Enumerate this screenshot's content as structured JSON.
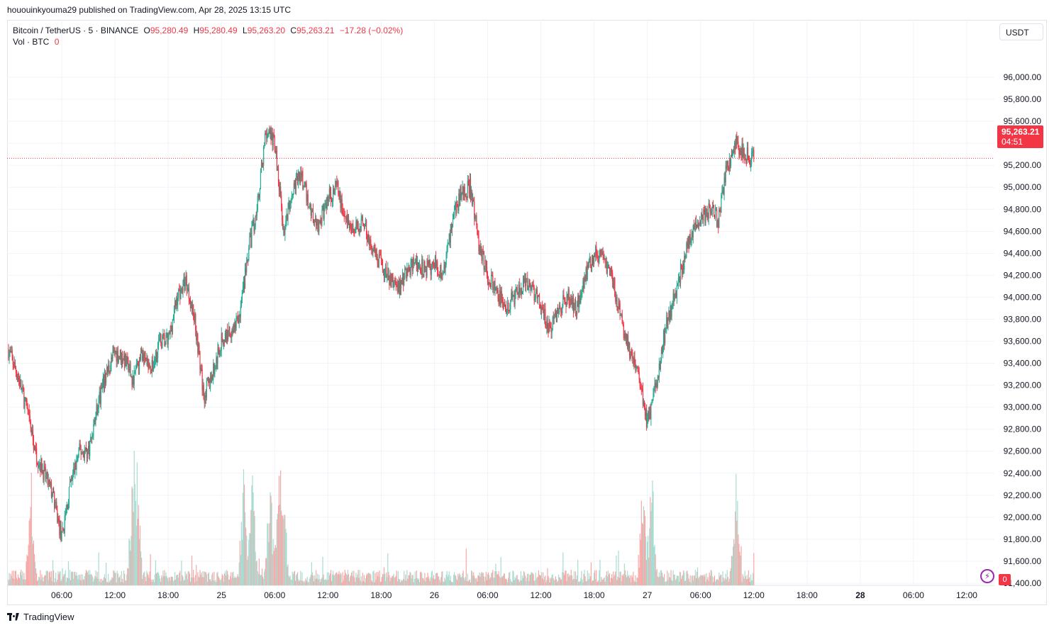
{
  "header": {
    "published_line": "hououinkyouma29 published on TradingView.com, Apr 28, 2025 13:15 UTC"
  },
  "legend": {
    "symbol": "Bitcoin / TetherUS · 5 · BINANCE",
    "open_label": "O",
    "open": "95,280.49",
    "high_label": "H",
    "high": "95,280.49",
    "low_label": "L",
    "low": "95,263.20",
    "close_label": "C",
    "close": "95,263.21",
    "change": "−17.28 (−0.02%)",
    "vol_label": "Vol · BTC",
    "vol_value": "0"
  },
  "currency_button": "USDT",
  "last_price": {
    "price": "95,263.21",
    "countdown": "04:51",
    "value": 95263.21
  },
  "volume_tag": "0",
  "brand": "TradingView",
  "colors": {
    "up": "#22ab94",
    "down": "#f23645",
    "vol_up": "#a8dcd2",
    "vol_down": "#f7a9a7",
    "grid": "#f0f3fa",
    "price_line": "#f23645"
  },
  "icons": {
    "flash": "lightning-icon",
    "brand": "tradingview-logo-icon"
  },
  "chart_data": {
    "type": "candlestick",
    "interval": "5",
    "y_axis": {
      "side": "right",
      "ylim": [
        91300,
        96100
      ],
      "ticks": [
        91400,
        91600,
        91800,
        92000,
        92200,
        92400,
        92600,
        92800,
        93000,
        93200,
        93400,
        93600,
        93800,
        94000,
        94200,
        94400,
        94600,
        94800,
        95000,
        95200,
        95400,
        95600,
        95800,
        96000
      ],
      "tick_labels": [
        "91,400.00",
        "91,600.00",
        "91,800.00",
        "92,000.00",
        "92,200.00",
        "92,400.00",
        "92,600.00",
        "92,800.00",
        "93,000.00",
        "93,200.00",
        "93,400.00",
        "93,600.00",
        "93,800.00",
        "94,000.00",
        "94,200.00",
        "94,400.00",
        "94,600.00",
        "94,800.00",
        "95,000.00",
        "95,200.00",
        "95,400.00",
        "95,600.00",
        "95,800.00",
        "96,000.00"
      ]
    },
    "x_axis": {
      "range_hours": [
        0,
        88
      ],
      "ticks": [
        {
          "t": 6,
          "label": "06:00",
          "bold": false
        },
        {
          "t": 12,
          "label": "12:00",
          "bold": false
        },
        {
          "t": 18,
          "label": "18:00",
          "bold": false
        },
        {
          "t": 24,
          "label": "25",
          "bold": false
        },
        {
          "t": 30,
          "label": "06:00",
          "bold": false
        },
        {
          "t": 36,
          "label": "12:00",
          "bold": false
        },
        {
          "t": 42,
          "label": "18:00",
          "bold": false
        },
        {
          "t": 48,
          "label": "26",
          "bold": false
        },
        {
          "t": 54,
          "label": "06:00",
          "bold": false
        },
        {
          "t": 60,
          "label": "12:00",
          "bold": false
        },
        {
          "t": 66,
          "label": "18:00",
          "bold": false
        },
        {
          "t": 72,
          "label": "27",
          "bold": false
        },
        {
          "t": 78,
          "label": "06:00",
          "bold": false
        },
        {
          "t": 84,
          "label": "12:00",
          "bold": false
        },
        {
          "t": 90,
          "label": "18:00",
          "bold": false
        },
        {
          "t": 96,
          "label": "28",
          "bold": true
        },
        {
          "t": 102,
          "label": "06:00",
          "bold": false
        },
        {
          "t": 108,
          "label": "12:00",
          "bold": false
        }
      ]
    },
    "time_range_hours": [
      0,
      110
    ],
    "price_path": [
      [
        0,
        93520
      ],
      [
        1,
        93300
      ],
      [
        2,
        93000
      ],
      [
        3,
        92600
      ],
      [
        4,
        92400
      ],
      [
        5,
        92200
      ],
      [
        6,
        91800
      ],
      [
        7,
        92300
      ],
      [
        8,
        92600
      ],
      [
        9,
        92600
      ],
      [
        10,
        93000
      ],
      [
        11,
        93300
      ],
      [
        12,
        93500
      ],
      [
        13,
        93450
      ],
      [
        14,
        93250
      ],
      [
        15,
        93500
      ],
      [
        16,
        93300
      ],
      [
        17,
        93600
      ],
      [
        18,
        93600
      ],
      [
        19,
        94000
      ],
      [
        20,
        94150
      ],
      [
        21,
        93800
      ],
      [
        22,
        93100
      ],
      [
        23,
        93300
      ],
      [
        24,
        93600
      ],
      [
        25,
        93700
      ],
      [
        26,
        93800
      ],
      [
        27,
        94400
      ],
      [
        28,
        94800
      ],
      [
        29,
        95500
      ],
      [
        30,
        95400
      ],
      [
        31,
        94600
      ],
      [
        32,
        95000
      ],
      [
        33,
        95100
      ],
      [
        34,
        94800
      ],
      [
        35,
        94650
      ],
      [
        36,
        94900
      ],
      [
        37,
        95000
      ],
      [
        38,
        94700
      ],
      [
        39,
        94600
      ],
      [
        40,
        94700
      ],
      [
        41,
        94400
      ],
      [
        42,
        94300
      ],
      [
        43,
        94150
      ],
      [
        44,
        94100
      ],
      [
        45,
        94250
      ],
      [
        46,
        94300
      ],
      [
        47,
        94250
      ],
      [
        48,
        94300
      ],
      [
        49,
        94200
      ],
      [
        50,
        94700
      ],
      [
        51,
        94950
      ],
      [
        52,
        95000
      ],
      [
        53,
        94500
      ],
      [
        54,
        94200
      ],
      [
        55,
        94050
      ],
      [
        56,
        93900
      ],
      [
        57,
        94000
      ],
      [
        58,
        94100
      ],
      [
        59,
        94100
      ],
      [
        60,
        93900
      ],
      [
        61,
        93700
      ],
      [
        62,
        93900
      ],
      [
        63,
        94000
      ],
      [
        64,
        93900
      ],
      [
        65,
        94200
      ],
      [
        66,
        94400
      ],
      [
        67,
        94350
      ],
      [
        68,
        94200
      ],
      [
        69,
        93800
      ],
      [
        70,
        93500
      ],
      [
        71,
        93300
      ],
      [
        72,
        92850
      ],
      [
        73,
        93200
      ],
      [
        74,
        93700
      ],
      [
        75,
        94000
      ],
      [
        76,
        94300
      ],
      [
        77,
        94600
      ],
      [
        78,
        94700
      ],
      [
        79,
        94800
      ],
      [
        80,
        94700
      ],
      [
        81,
        95200
      ],
      [
        82,
        95400
      ],
      [
        83,
        95300
      ],
      [
        84,
        95263
      ]
    ],
    "volume_spikes_hours": [
      2.5,
      14,
      14.5,
      26.5,
      27.5,
      29.5,
      30.5,
      31,
      71.5,
      72.5,
      82,
      84.5
    ]
  }
}
